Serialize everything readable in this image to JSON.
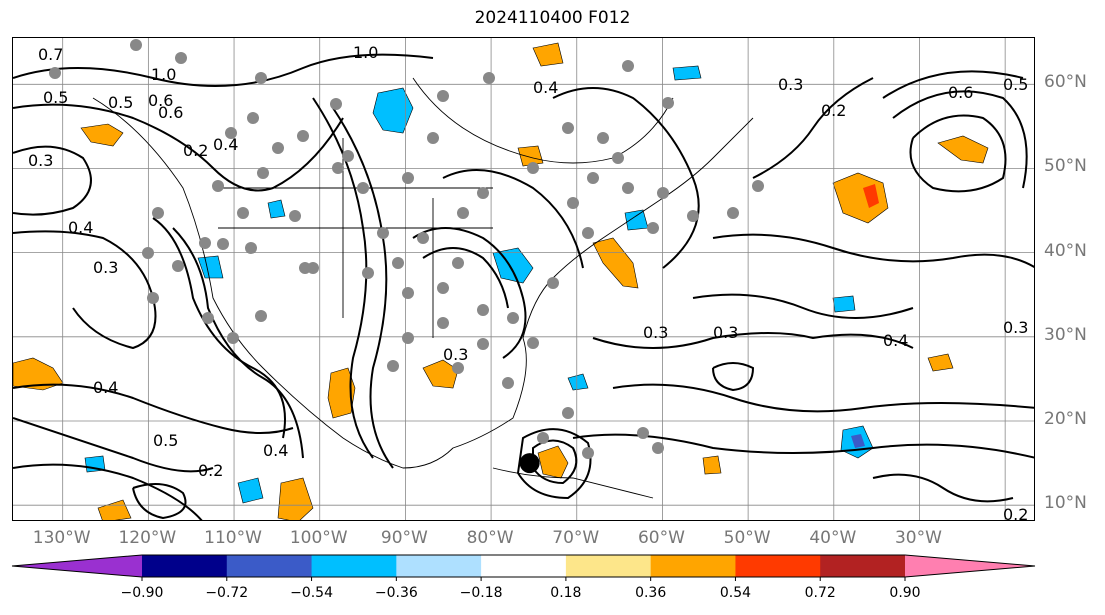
{
  "title": "2024110400 F012",
  "lat_labels": [
    "60°N",
    "50°N",
    "40°N",
    "30°N",
    "20°N",
    "10°N"
  ],
  "lon_labels": [
    "130°W",
    "120°W",
    "110°W",
    "100°W",
    "90°W",
    "80°W",
    "70°W",
    "60°W",
    "50°W",
    "40°W",
    "30°W"
  ],
  "contour_labels": [
    "0.7",
    "1.0",
    "1.0",
    "0.5",
    "0.6",
    "0.2",
    "0.4",
    "0.3",
    "0.4",
    "0.3",
    "0.6",
    "0.5",
    "0.3",
    "0.2",
    "0.6",
    "0.5",
    "0.4",
    "0.3",
    "0.3",
    "0.4",
    "0.3",
    "0.3",
    "0.4",
    "0.5",
    "0.2",
    "0.4",
    "0.2"
  ],
  "colorbar": {
    "ticks": [
      "−0.90",
      "−0.72",
      "−0.54",
      "−0.36",
      "−0.18",
      "0.18",
      "0.36",
      "0.54",
      "0.72",
      "0.90"
    ],
    "colors": [
      "#9a30d0",
      "#00008b",
      "#3b5bc8",
      "#00bfff",
      "#aee0ff",
      "#ffffff",
      "#fde68a",
      "#ffa500",
      "#ff3a00",
      "#b22222",
      "#ff7fb0"
    ]
  },
  "marker": {
    "lon": -75.5,
    "lat": 15
  }
}
